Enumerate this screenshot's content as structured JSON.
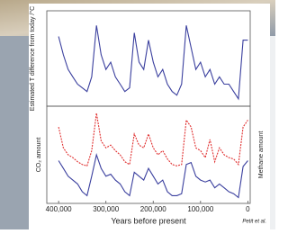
{
  "chart_data": [
    {
      "type": "line",
      "ylabel": "Estimated T difference from today /°C",
      "x": [
        400000,
        390000,
        380000,
        370000,
        360000,
        350000,
        340000,
        330000,
        320000,
        310000,
        300000,
        290000,
        280000,
        270000,
        260000,
        250000,
        240000,
        230000,
        220000,
        210000,
        200000,
        190000,
        180000,
        170000,
        160000,
        150000,
        140000,
        130000,
        120000,
        110000,
        100000,
        90000,
        80000,
        70000,
        60000,
        50000,
        40000,
        30000,
        20000,
        10000,
        0
      ],
      "xlim": [
        425000,
        -5000
      ],
      "ylim": [
        -9,
        4
      ],
      "series": [
        {
          "color": "#3a3f9e",
          "values": [
            0.5,
            -2,
            -4,
            -5,
            -6,
            -6.5,
            -7,
            -5,
            2,
            -2,
            -4,
            -3,
            -5,
            -6,
            -7,
            -6.5,
            1,
            -3,
            -4,
            0,
            -3,
            -5,
            -4,
            -6,
            -7,
            -7.5,
            -6,
            2,
            -1,
            -4,
            -3,
            -5,
            -4,
            -6,
            -5,
            -6,
            -6,
            -7,
            -8,
            0,
            0
          ]
        }
      ]
    },
    {
      "type": "line",
      "ylabel": "CO₂ amount",
      "y2label": "Methane amount",
      "xlabel": "Years before present",
      "source": "Petit et al.",
      "x": [
        400000,
        390000,
        380000,
        370000,
        360000,
        350000,
        340000,
        330000,
        320000,
        310000,
        300000,
        290000,
        280000,
        270000,
        260000,
        250000,
        240000,
        230000,
        220000,
        210000,
        200000,
        190000,
        180000,
        170000,
        160000,
        150000,
        140000,
        130000,
        120000,
        110000,
        100000,
        90000,
        80000,
        70000,
        60000,
        50000,
        40000,
        30000,
        20000,
        10000,
        0
      ],
      "xlim": [
        425000,
        -5000
      ],
      "xticks": [
        {
          "value": 400000,
          "label": "400,000"
        },
        {
          "value": 300000,
          "label": "300,000"
        },
        {
          "value": 200000,
          "label": "200,000"
        },
        {
          "value": 100000,
          "label": "100,000"
        },
        0
      ],
      "ylim": [
        170,
        420
      ],
      "y2lim": [
        100,
        800
      ],
      "series": [
        {
          "color": "#3a3f9e",
          "values": [
            280,
            260,
            240,
            230,
            220,
            200,
            190,
            240,
            295,
            260,
            240,
            245,
            230,
            220,
            200,
            190,
            250,
            240,
            230,
            260,
            240,
            220,
            230,
            200,
            190,
            190,
            195,
            270,
            275,
            240,
            230,
            225,
            230,
            210,
            220,
            210,
            200,
            195,
            185,
            265,
            280
          ]
        },
        {
          "color": "#e03030",
          "axis": "y2",
          "values": [
            650,
            500,
            450,
            430,
            400,
            380,
            370,
            480,
            750,
            550,
            500,
            520,
            480,
            450,
            400,
            380,
            600,
            520,
            500,
            600,
            500,
            450,
            480,
            420,
            380,
            370,
            380,
            700,
            650,
            500,
            480,
            430,
            560,
            400,
            500,
            450,
            430,
            420,
            380,
            650,
            700
          ]
        }
      ]
    }
  ]
}
